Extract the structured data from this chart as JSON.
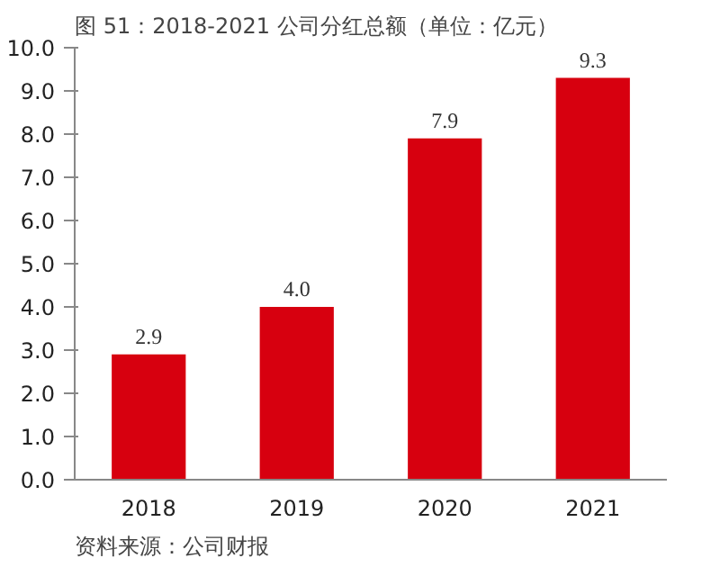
{
  "chart_data": {
    "type": "bar",
    "title": "图 51：2018-2021 公司分红总额（单位：亿元）",
    "categories": [
      "2018",
      "2019",
      "2020",
      "2021"
    ],
    "values": [
      2.9,
      4.0,
      7.9,
      9.3
    ],
    "value_labels": [
      "2.9",
      "4.0",
      "7.9",
      "9.3"
    ],
    "color": "#d7000f",
    "ylim": [
      0,
      10
    ],
    "yticks": [
      {
        "value": 0,
        "label": "0.0"
      },
      {
        "value": 1,
        "label": "1.0"
      },
      {
        "value": 2,
        "label": "2.0"
      },
      {
        "value": 3,
        "label": "3.0"
      },
      {
        "value": 4,
        "label": "4.0"
      },
      {
        "value": 5,
        "label": "5.0"
      },
      {
        "value": 6,
        "label": "6.0"
      },
      {
        "value": 7,
        "label": "7.0"
      },
      {
        "value": 8,
        "label": "8.0"
      },
      {
        "value": 9,
        "label": "9.0"
      },
      {
        "value": 10,
        "label": "10.0"
      }
    ],
    "grid": false,
    "annotations": [
      "资料来源：公司财报"
    ]
  }
}
